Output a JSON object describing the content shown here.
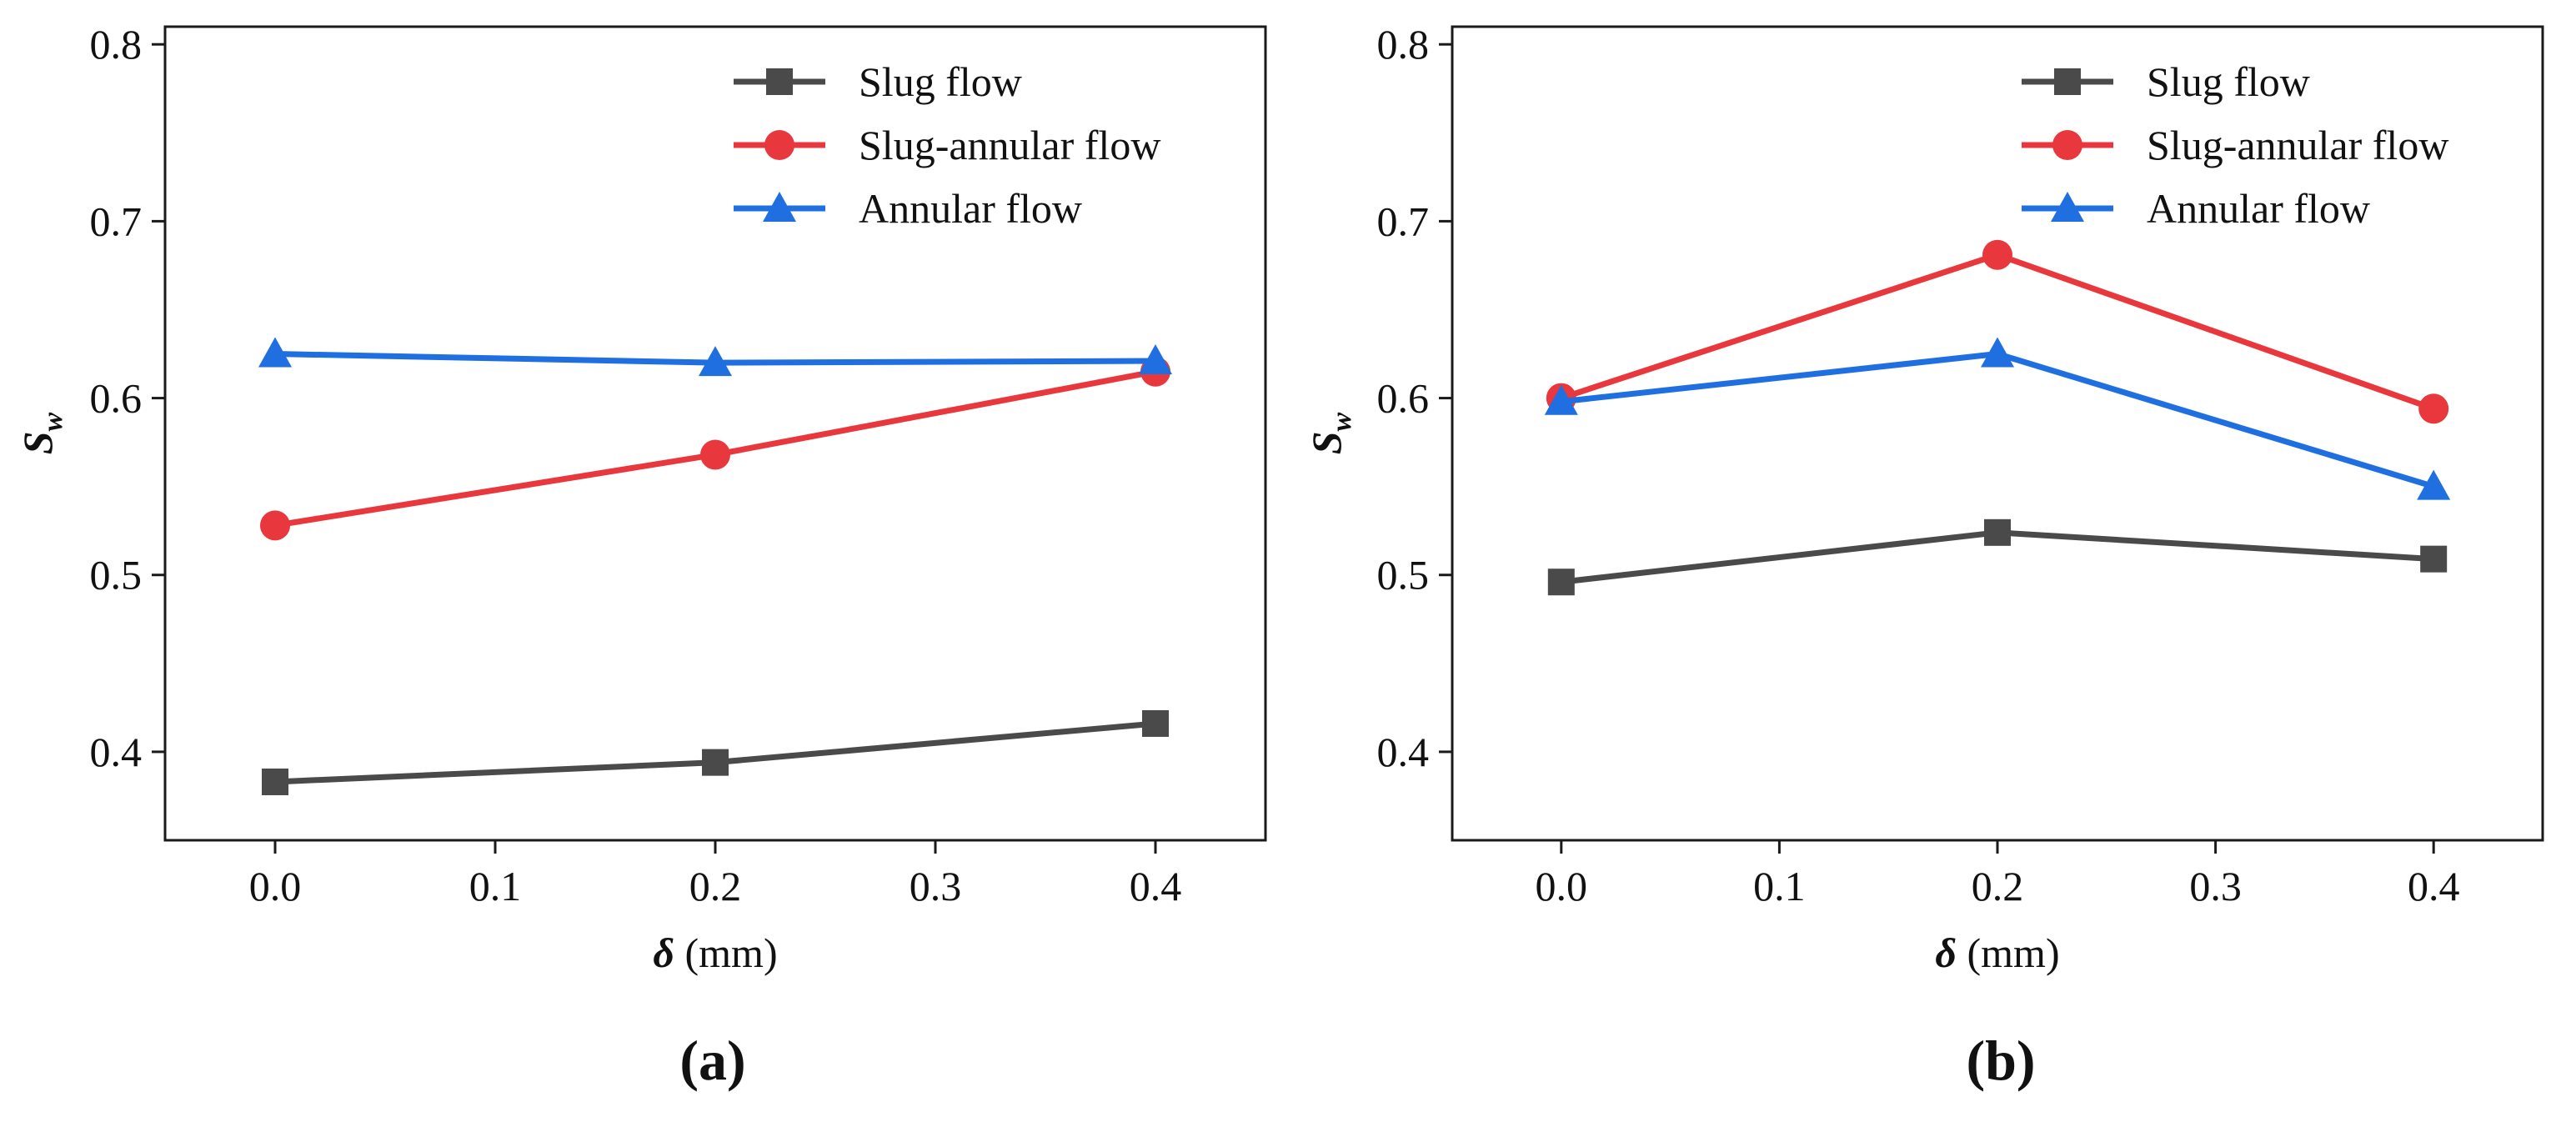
{
  "figure": {
    "panel_labels": [
      "(a)",
      "(b)"
    ]
  },
  "chart_data": [
    {
      "type": "line",
      "panel": "(a)",
      "xlabel_symbol": "δ",
      "xlabel_unit": " (mm)",
      "ylabel_main": "S",
      "ylabel_sub": "w",
      "xlim": [
        -0.05,
        0.45
      ],
      "ylim": [
        0.35,
        0.81
      ],
      "x_ticks": [
        0.0,
        0.1,
        0.2,
        0.3,
        0.4
      ],
      "x_tick_labels": [
        "0.0",
        "0.1",
        "0.2",
        "0.3",
        "0.4"
      ],
      "y_ticks": [
        0.4,
        0.5,
        0.6,
        0.7,
        0.8
      ],
      "y_tick_labels": [
        "0.4",
        "0.5",
        "0.6",
        "0.7",
        "0.8"
      ],
      "x": [
        0.0,
        0.2,
        0.4
      ],
      "legend_position": "top-right",
      "series": [
        {
          "name": "Slug flow",
          "marker": "square",
          "color": "#4a4a4a",
          "values": [
            0.383,
            0.394,
            0.416
          ]
        },
        {
          "name": "Slug-annular flow",
          "marker": "circle",
          "color": "#e8383d",
          "values": [
            0.528,
            0.568,
            0.615
          ]
        },
        {
          "name": "Annular flow",
          "marker": "triangle",
          "color": "#1f6fe0",
          "values": [
            0.625,
            0.62,
            0.621
          ]
        }
      ]
    },
    {
      "type": "line",
      "panel": "(b)",
      "xlabel_symbol": "δ",
      "xlabel_unit": " (mm)",
      "ylabel_main": "S",
      "ylabel_sub": "w",
      "xlim": [
        -0.05,
        0.45
      ],
      "ylim": [
        0.35,
        0.81
      ],
      "x_ticks": [
        0.0,
        0.1,
        0.2,
        0.3,
        0.4
      ],
      "x_tick_labels": [
        "0.0",
        "0.1",
        "0.2",
        "0.3",
        "0.4"
      ],
      "y_ticks": [
        0.4,
        0.5,
        0.6,
        0.7,
        0.8
      ],
      "y_tick_labels": [
        "0.4",
        "0.5",
        "0.6",
        "0.7",
        "0.8"
      ],
      "x": [
        0.0,
        0.2,
        0.4
      ],
      "legend_position": "top-right",
      "series": [
        {
          "name": "Slug flow",
          "marker": "square",
          "color": "#4a4a4a",
          "values": [
            0.496,
            0.524,
            0.509
          ]
        },
        {
          "name": "Slug-annular flow",
          "marker": "circle",
          "color": "#e8383d",
          "values": [
            0.6,
            0.681,
            0.594
          ]
        },
        {
          "name": "Annular flow",
          "marker": "triangle",
          "color": "#1f6fe0",
          "values": [
            0.598,
            0.625,
            0.55
          ]
        }
      ]
    }
  ]
}
